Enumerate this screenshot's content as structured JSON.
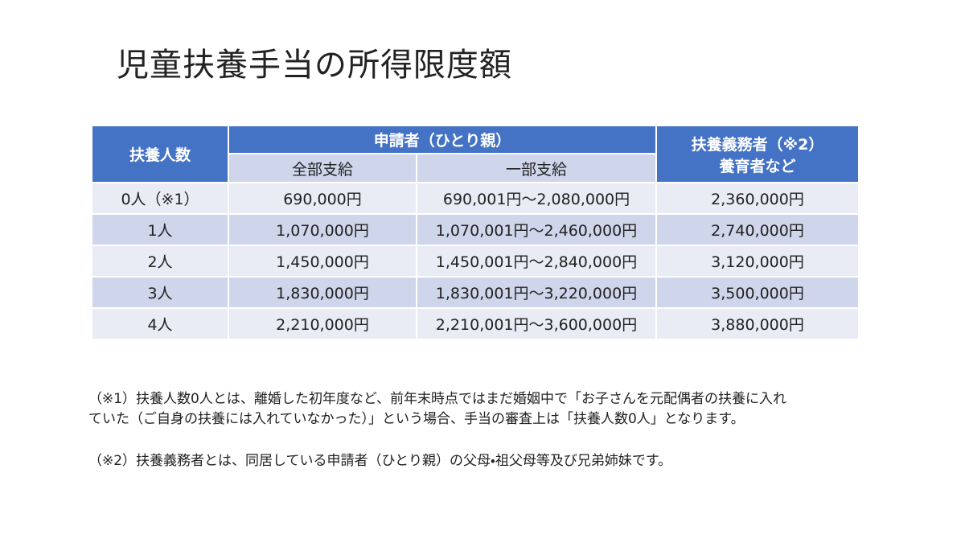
{
  "title": "児童扶養手当の所得限度額",
  "table": {
    "header": {
      "count": "扶養人数",
      "applicant": "申請者（ひとり親）",
      "full": "全部支給",
      "partial": "一部支給",
      "obligor": [
        "扶養義務者（※2）",
        "養育者など"
      ]
    },
    "rows": [
      [
        "0人（※1）",
        "690,000円",
        "690,001円～2,080,000円",
        "2,360,000円"
      ],
      [
        "1人",
        "1,070,000円",
        "1,070,001円～2,460,000円",
        "2,740,000円"
      ],
      [
        "2人",
        "1,450,000円",
        "1,450,001円～2,840,000円",
        "3,120,000円"
      ],
      [
        "3人",
        "1,830,000円",
        "1,830,001円～3,220,000円",
        "3,500,000円"
      ],
      [
        "4人",
        "2,210,000円",
        "2,210,001円～3,600,000円",
        "3,880,000円"
      ]
    ]
  },
  "notes": {
    "note1": [
      "（※1）扶養人数0人とは、離婚した初年度など、前年末時点ではまだ婚姻中で「お子さんを元配偶者の扶養に入れ",
      "ていた（ご自身の扶養には入れていなかった）」という場合、手当の審査上は「扶養人数0人」となります。"
    ],
    "note2": "（※2）扶養義務者とは、同居している申請者（ひとり親）の父母・祖父母等及び兄弟姉妹です。"
  }
}
